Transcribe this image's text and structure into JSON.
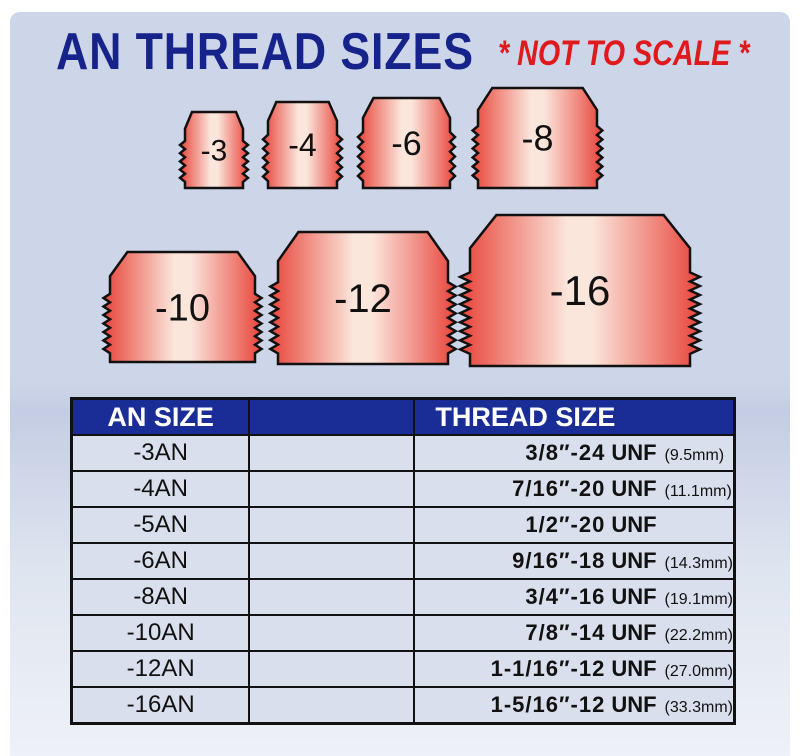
{
  "title": "AN THREAD SIZES",
  "note": "* NOT TO SCALE *",
  "colors": {
    "title": "#16238a",
    "note": "#e0191c",
    "table_header": "#1a2d96",
    "fitting": "#e8553f"
  },
  "fittings": [
    {
      "label": "-3"
    },
    {
      "label": "-4"
    },
    {
      "label": "-6"
    },
    {
      "label": "-8"
    },
    {
      "label": "-10"
    },
    {
      "label": "-12"
    },
    {
      "label": "-16"
    }
  ],
  "table": {
    "headers": [
      "AN SIZE",
      "",
      "THREAD SIZE"
    ],
    "rows": [
      {
        "an": "-3AN",
        "thread": "3/8″-24",
        "unf": "UNF",
        "mm": "(9.5mm)"
      },
      {
        "an": "-4AN",
        "thread": "7/16″-20",
        "unf": "UNF",
        "mm": "(11.1mm)"
      },
      {
        "an": "-5AN",
        "thread": "1/2″-20",
        "unf": "UNF",
        "mm": ""
      },
      {
        "an": "-6AN",
        "thread": "9/16″-18",
        "unf": "UNF",
        "mm": "(14.3mm)"
      },
      {
        "an": "-8AN",
        "thread": "3/4″-16",
        "unf": "UNF",
        "mm": "(19.1mm)"
      },
      {
        "an": "-10AN",
        "thread": "7/8″-14",
        "unf": "UNF",
        "mm": "(22.2mm)"
      },
      {
        "an": "-12AN",
        "thread": "1-1/16″-12",
        "unf": "UNF",
        "mm": "(27.0mm)"
      },
      {
        "an": "-16AN",
        "thread": "1-5/16″-12",
        "unf": "UNF",
        "mm": "(33.3mm)"
      }
    ]
  }
}
